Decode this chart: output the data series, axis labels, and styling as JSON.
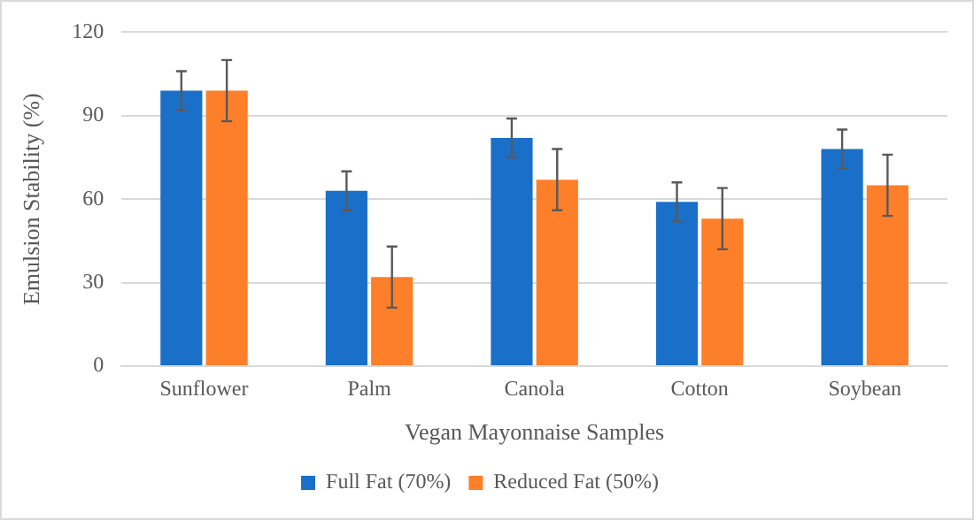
{
  "chart_data": {
    "type": "bar",
    "xlabel": "Vegan Mayonnaise Samples",
    "ylabel": "Emulsion Stability (%)",
    "categories": [
      "Sunflower",
      "Palm",
      "Canola",
      "Cotton",
      "Soybean"
    ],
    "series": [
      {
        "name": "Full Fat (70%)",
        "color": "#1a70c8",
        "values": [
          99,
          63,
          82,
          59,
          78
        ],
        "errors": [
          7,
          7,
          7,
          7,
          7
        ]
      },
      {
        "name": "Reduced Fat (50%)",
        "color": "#fe7f2a",
        "values": [
          99,
          32,
          67,
          53,
          65
        ],
        "errors": [
          11,
          11,
          11,
          11,
          11
        ]
      }
    ],
    "ylim": [
      0,
      120
    ],
    "yticks": [
      0,
      30,
      60,
      90,
      120
    ],
    "grid": "y",
    "legend": "bottom"
  }
}
